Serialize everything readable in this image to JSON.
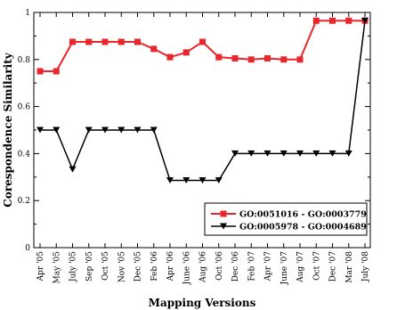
{
  "chart_data": {
    "type": "line",
    "xlabel": "Mapping Versions",
    "ylabel": "Corespondence Similarity",
    "ylim": [
      0,
      1
    ],
    "yticks": [
      "0",
      "0.2",
      "0.4",
      "0.6",
      "0.8",
      "1"
    ],
    "categories": [
      "Apr '05",
      "May '05",
      "July '05",
      "Sep '05",
      "Oct '05",
      "Nov '05",
      "Dec '05",
      "Feb '06",
      "Apr '06",
      "June '06",
      "Aug '06",
      "Oct '06",
      "Dec '06",
      "Feb '07",
      "Apr '07",
      "June '07",
      "Aug '07",
      "Oct '07",
      "Dec '07",
      "Mar '08",
      "July '08"
    ],
    "legend_position": "lower-right",
    "series": [
      {
        "name": "GO:0051016 - GO:0003779",
        "color": "#e8262b",
        "marker": "square",
        "values": [
          0.75,
          0.75,
          0.875,
          0.875,
          0.875,
          0.875,
          0.875,
          0.845,
          0.81,
          0.83,
          0.875,
          0.81,
          0.805,
          0.8,
          0.805,
          0.8,
          0.8,
          0.965,
          0.965,
          0.965,
          0.965
        ]
      },
      {
        "name": "GO:0005978 - GO:0004689",
        "color": "#000000",
        "marker": "triangle-down",
        "values": [
          0.5,
          0.5,
          0.333,
          0.5,
          0.5,
          0.5,
          0.5,
          0.5,
          0.286,
          0.286,
          0.286,
          0.286,
          0.4,
          0.4,
          0.4,
          0.4,
          0.4,
          0.4,
          0.4,
          0.4,
          0.965
        ]
      }
    ]
  }
}
